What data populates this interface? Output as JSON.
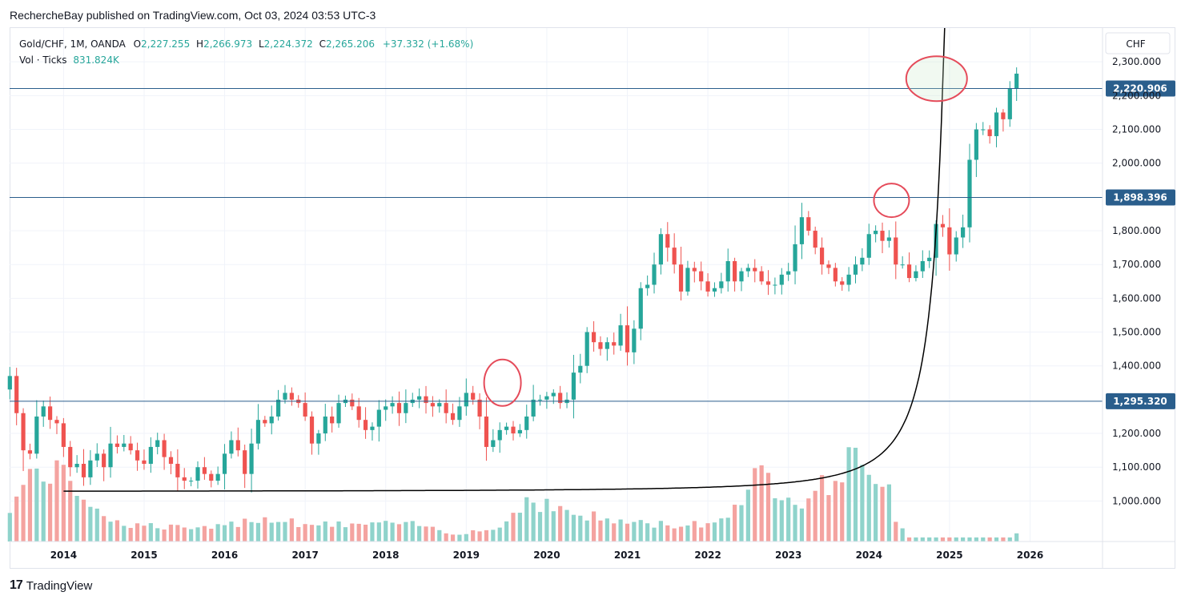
{
  "publication": {
    "text": "RechercheBay published on TradingView.com, Oct 03, 2024 03:53 UTC-3"
  },
  "legend": {
    "symbol": "Gold/CHF, 1M, OANDA",
    "o_label": "O",
    "o_value": "2,227.255",
    "h_label": "H",
    "h_value": "2,266.973",
    "l_label": "L",
    "l_value": "2,224.372",
    "c_label": "C",
    "c_value": "2,265.206",
    "change": "+37.332 (+1.68%)",
    "vol_label": "Vol · Ticks",
    "vol_value": "831.824K"
  },
  "footer": {
    "brand": "TradingView",
    "logo_text": "17"
  },
  "colors": {
    "up": "#26a69a",
    "down": "#ef5350",
    "up_vol": "#8fd3cb",
    "down_vol": "#f4a3a0",
    "hline": "#2a5e8c",
    "circle": "#e54b5a",
    "grid": "#f0f3fa",
    "curve": "#000000"
  },
  "chart_data": {
    "type": "candlestick",
    "currency": "CHF",
    "y_ticks": [
      "2,300.000",
      "2,200.000",
      "2,100.000",
      "2,000.000",
      "1,800.000",
      "1,700.000",
      "1,600.000",
      "1,500.000",
      "1,400.000",
      "1,200.000",
      "1,100.000",
      "1,000.000"
    ],
    "y_tick_values": [
      2300,
      2200,
      2100,
      2000,
      1800,
      1700,
      1600,
      1500,
      1400,
      1200,
      1100,
      1000
    ],
    "ylim": [
      880,
      2400
    ],
    "x_ticks": [
      "2014",
      "2015",
      "2016",
      "2017",
      "2018",
      "2019",
      "2020",
      "2021",
      "2022",
      "2023",
      "2024",
      "2025",
      "2026"
    ],
    "x_tick_years": [
      2014,
      2015,
      2016,
      2017,
      2018,
      2019,
      2020,
      2021,
      2022,
      2023,
      2024,
      2025,
      2026
    ],
    "xlim": [
      2013.33,
      2026.9
    ],
    "horizontal_lines": [
      {
        "value": 2220.906,
        "label": "2,220.906"
      },
      {
        "value": 1898.396,
        "label": "1,898.396"
      },
      {
        "value": 1295.32,
        "label": "1,295.320"
      }
    ],
    "closes": [
      1370,
      1260,
      1150,
      1140,
      1250,
      1280,
      1240,
      1230,
      1160,
      1100,
      1110,
      1070,
      1120,
      1140,
      1100,
      1170,
      1160,
      1170,
      1150,
      1120,
      1110,
      1160,
      1180,
      1130,
      1110,
      1070,
      1060,
      1060,
      1100,
      1080,
      1060,
      1080,
      1140,
      1180,
      1150,
      1080,
      1170,
      1240,
      1230,
      1250,
      1300,
      1320,
      1300,
      1290,
      1250,
      1170,
      1200,
      1250,
      1230,
      1290,
      1300,
      1280,
      1240,
      1210,
      1220,
      1270,
      1280,
      1290,
      1260,
      1290,
      1300,
      1310,
      1290,
      1280,
      1290,
      1260,
      1240,
      1280,
      1320,
      1300,
      1250,
      1160,
      1180,
      1210,
      1220,
      1200,
      1210,
      1250,
      1300,
      1300,
      1310,
      1320,
      1290,
      1300,
      1380,
      1400,
      1500,
      1470,
      1450,
      1470,
      1460,
      1520,
      1440,
      1510,
      1630,
      1640,
      1700,
      1790,
      1750,
      1700,
      1620,
      1690,
      1680,
      1650,
      1620,
      1630,
      1650,
      1710,
      1650,
      1680,
      1690,
      1680,
      1650,
      1640,
      1640,
      1670,
      1680,
      1760,
      1840,
      1800,
      1750,
      1700,
      1690,
      1650,
      1640,
      1670,
      1700,
      1720,
      1790,
      1800,
      1770,
      1780,
      1700,
      1700,
      1660,
      1680,
      1710,
      1720,
      1820,
      1810,
      1730,
      1780,
      1810,
      2010,
      2100,
      2100,
      2080,
      2150,
      2130,
      2220,
      2265
    ],
    "volume_profile": [
      [
        0.0,
        0.26
      ],
      [
        0.35,
        0.55
      ],
      [
        0.8,
        0.42
      ],
      [
        1.3,
        0.14
      ],
      [
        1.85,
        0.11
      ],
      [
        2.5,
        0.09
      ],
      [
        3.1,
        0.18
      ],
      [
        3.85,
        0.12
      ],
      [
        4.5,
        0.13
      ],
      [
        5.1,
        0.12
      ],
      [
        5.5,
        0.06
      ],
      [
        6.1,
        0.1
      ],
      [
        6.4,
        0.32
      ],
      [
        6.9,
        0.22
      ],
      [
        7.5,
        0.15
      ],
      [
        8.2,
        0.12
      ],
      [
        8.8,
        0.14
      ],
      [
        9.05,
        0.31
      ],
      [
        9.3,
        0.49
      ],
      [
        9.8,
        0.31
      ],
      [
        10.15,
        0.42
      ],
      [
        10.45,
        0.62
      ],
      [
        10.7,
        0.4
      ],
      [
        10.9,
        0.55
      ],
      [
        11.0,
        0.17
      ],
      [
        11.2,
        0.0
      ]
    ]
  }
}
